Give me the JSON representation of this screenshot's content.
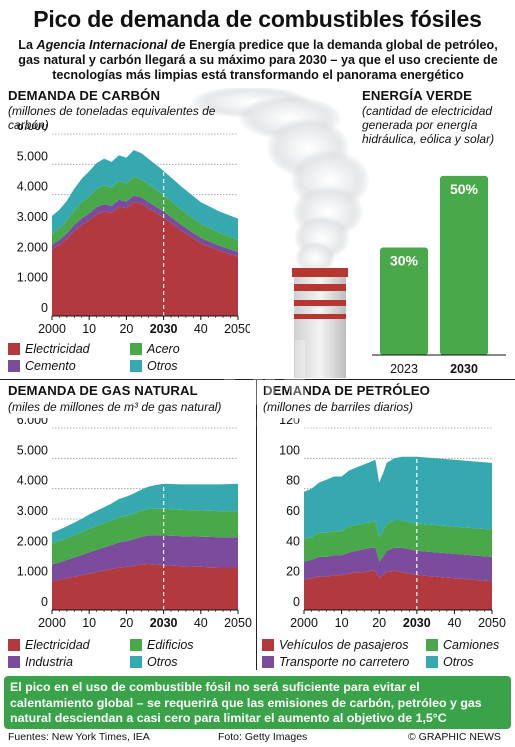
{
  "title": "Pico de demanda de combustibles fósiles",
  "subtitle_pre": "La ",
  "subtitle_italic": "Agencia Internacional de",
  "subtitle_post": " Energía predice que la demanda global de petróleo, gas natural y carbón llegará a su máximo para 2030 – ya que el uso creciente de tecnologías más limpias está transformando el panorama energético",
  "coal": {
    "title": "DEMANDA DE CARBÓN",
    "unit": "(millones de toneladas equivalentes de carbón)"
  },
  "green": {
    "title": "ENERGÍA VERDE",
    "unit": "(cantidad de electricidad generada por energía hidráulica, eólica y solar)"
  },
  "gas": {
    "title": "DEMANDA DE GAS NATURAL",
    "unit": "(miles de millones de m³ de gas natural)"
  },
  "oil": {
    "title": "DEMANDA DE PETRÓLEO",
    "unit": "(millones de barriles diarios)"
  },
  "footer_text": "El pico en el uso de combustible fósil no será suficiente para evitar el calentamiento global – se requerirá que las emisiones de carbón, petróleo y gas natural desciendan a casi cero para limitar el aumento al objetivo de 1,5°C",
  "credits": {
    "sources": "Fuentes: New York Times, IEA",
    "photo": "Foto: Getty Images",
    "copyright": "© GRAPHIC NEWS"
  },
  "watermark": "GRAPHIC NEWS",
  "colors": {
    "red": "#b23a3f",
    "purple": "#7b4b9d",
    "green": "#49a84a",
    "teal": "#36a9b0",
    "footer_green": "#3aa34a"
  },
  "chart_data": [
    {
      "type": "area",
      "id": "coal",
      "x": [
        2000,
        2002,
        2004,
        2006,
        2008,
        2010,
        2012,
        2014,
        2016,
        2018,
        2020,
        2022,
        2024,
        2026,
        2028,
        2030,
        2035,
        2040,
        2045,
        2050
      ],
      "xticks": [
        "2000",
        "10",
        "20",
        "2030",
        "40",
        "2050"
      ],
      "xtick_values": [
        2000,
        2010,
        2020,
        2030,
        2040,
        2050
      ],
      "yticks": [
        "6.000",
        "5.000",
        "4.000",
        "3.000",
        "2.000",
        "1.000",
        "0"
      ],
      "ylim": [
        0,
        6000
      ],
      "highlight_x": 2030,
      "series": [
        {
          "name": "Electricidad",
          "color": "#b23a3f",
          "values": [
            2200,
            2350,
            2550,
            2800,
            3000,
            3150,
            3350,
            3450,
            3400,
            3600,
            3550,
            3750,
            3700,
            3550,
            3400,
            3250,
            2800,
            2400,
            2150,
            1950
          ]
        },
        {
          "name": "Cemento",
          "color": "#7b4b9d",
          "values": [
            150,
            160,
            180,
            200,
            220,
            230,
            240,
            240,
            230,
            230,
            220,
            220,
            210,
            205,
            200,
            195,
            185,
            175,
            165,
            160
          ]
        },
        {
          "name": "Acero",
          "color": "#49a84a",
          "values": [
            350,
            380,
            420,
            480,
            530,
            560,
            600,
            620,
            600,
            620,
            600,
            620,
            600,
            580,
            560,
            540,
            500,
            460,
            430,
            400
          ]
        },
        {
          "name": "Otros",
          "color": "#36a9b0",
          "values": [
            600,
            610,
            650,
            720,
            780,
            830,
            850,
            880,
            850,
            850,
            850,
            880,
            860,
            840,
            820,
            800,
            760,
            720,
            700,
            700
          ]
        }
      ]
    },
    {
      "type": "bar",
      "id": "green",
      "categories": [
        "2023",
        "2030"
      ],
      "values": [
        30,
        50
      ],
      "labels": [
        "30%",
        "50%"
      ],
      "ylim": [
        0,
        55
      ]
    },
    {
      "type": "area",
      "id": "gas",
      "x": [
        2000,
        2002,
        2004,
        2006,
        2008,
        2010,
        2012,
        2014,
        2016,
        2018,
        2020,
        2022,
        2024,
        2026,
        2028,
        2030,
        2035,
        2040,
        2045,
        2050
      ],
      "xticks": [
        "2000",
        "10",
        "20",
        "2030",
        "40",
        "2050"
      ],
      "xtick_values": [
        2000,
        2010,
        2020,
        2030,
        2040,
        2050
      ],
      "yticks": [
        "6.000",
        "5.000",
        "4.000",
        "3.000",
        "2.000",
        "1.000",
        "0"
      ],
      "ylim": [
        0,
        6000
      ],
      "highlight_x": 2030,
      "series": [
        {
          "name": "Electricidad",
          "color": "#b23a3f",
          "values": [
            950,
            1000,
            1050,
            1100,
            1150,
            1200,
            1250,
            1300,
            1350,
            1400,
            1420,
            1450,
            1500,
            1520,
            1500,
            1480,
            1440,
            1420,
            1400,
            1400
          ]
        },
        {
          "name": "Industria",
          "color": "#7b4b9d",
          "values": [
            550,
            570,
            600,
            630,
            660,
            700,
            730,
            760,
            790,
            830,
            850,
            880,
            910,
            940,
            960,
            980,
            990,
            1000,
            1000,
            1000
          ]
        },
        {
          "name": "Edificios",
          "color": "#49a84a",
          "values": [
            700,
            710,
            720,
            740,
            760,
            780,
            790,
            800,
            810,
            830,
            840,
            850,
            860,
            870,
            880,
            880,
            870,
            860,
            860,
            860
          ]
        },
        {
          "name": "Otros",
          "color": "#36a9b0",
          "values": [
            350,
            370,
            390,
            410,
            440,
            470,
            500,
            530,
            560,
            600,
            630,
            660,
            700,
            740,
            780,
            820,
            840,
            860,
            880,
            900
          ]
        }
      ]
    },
    {
      "type": "area",
      "id": "oil",
      "x": [
        2000,
        2002,
        2004,
        2006,
        2008,
        2010,
        2012,
        2014,
        2016,
        2018,
        2019,
        2020,
        2021,
        2022,
        2024,
        2026,
        2028,
        2030,
        2035,
        2040,
        2045,
        2050
      ],
      "xticks": [
        "2000",
        "10",
        "20",
        "2030",
        "40",
        "2050"
      ],
      "xtick_values": [
        2000,
        2010,
        2020,
        2030,
        2040,
        2050
      ],
      "yticks": [
        "120",
        "100",
        "80",
        "60",
        "40",
        "20",
        "0"
      ],
      "ylim": [
        0,
        120
      ],
      "highlight_x": 2030,
      "series": [
        {
          "name": "Vehículos de pasajeros",
          "color": "#b23a3f",
          "values": [
            20,
            21,
            22,
            22,
            23,
            23,
            24,
            25,
            25,
            26,
            26,
            21,
            23,
            25,
            26,
            25,
            24,
            23,
            22,
            21,
            20,
            19
          ]
        },
        {
          "name": "Transporte no carretero",
          "color": "#7b4b9d",
          "values": [
            12,
            12,
            13,
            13,
            13,
            13,
            14,
            14,
            15,
            15,
            15,
            11,
            12,
            14,
            15,
            16,
            16,
            16,
            16,
            16,
            16,
            16
          ]
        },
        {
          "name": "Camiones",
          "color": "#49a84a",
          "values": [
            15,
            15,
            16,
            16,
            16,
            16,
            17,
            17,
            17,
            17,
            18,
            16,
            17,
            18,
            18,
            18,
            18,
            18,
            18,
            18,
            18,
            18
          ]
        },
        {
          "name": "Otros",
          "color": "#36a9b0",
          "values": [
            31,
            32,
            33,
            35,
            36,
            36,
            37,
            38,
            39,
            40,
            40,
            36,
            38,
            40,
            41,
            42,
            43,
            44,
            44,
            44,
            44,
            44
          ]
        }
      ]
    }
  ],
  "legends": {
    "coal": [
      "Electricidad",
      "Cemento",
      "Acero",
      "Otros"
    ],
    "gas": [
      "Electricidad",
      "Industria",
      "Edificios",
      "Otros"
    ],
    "oil": [
      "Vehículos de pasajeros",
      "Transporte no carretero",
      "Camiones",
      "Otros"
    ]
  }
}
